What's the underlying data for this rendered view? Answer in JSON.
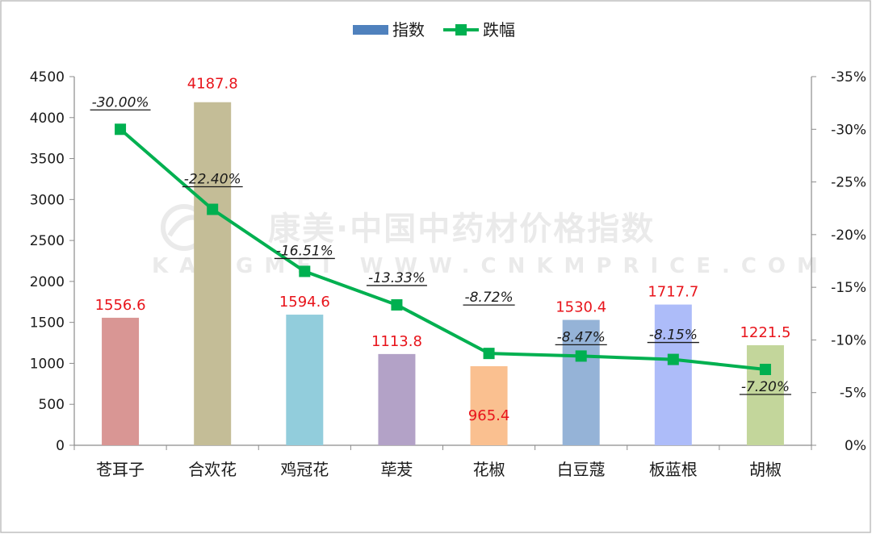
{
  "chart_data": {
    "type": "bar",
    "categories": [
      "苍耳子",
      "合欢花",
      "鸡冠花",
      "荜茇",
      "花椒",
      "白豆蔻",
      "板蓝根",
      "胡椒"
    ],
    "series": [
      {
        "name": "指数",
        "type": "bar",
        "axis": "left",
        "values": [
          1556.6,
          4187.8,
          1594.6,
          1113.8,
          965.4,
          1530.4,
          1717.7,
          1221.5
        ],
        "value_labels": [
          "1556.6",
          "4187.8",
          "1594.6",
          "1113.8",
          "965.4",
          "1530.4",
          "1717.7",
          "1221.5"
        ],
        "colors": [
          "#d99694",
          "#c4bd97",
          "#92cddc",
          "#b3a2c7",
          "#fac090",
          "#95b3d7",
          "#adbcf9",
          "#c3d69b"
        ]
      },
      {
        "name": "跌幅",
        "type": "line",
        "axis": "right",
        "values": [
          -30.0,
          -22.4,
          -16.51,
          -13.33,
          -8.72,
          -8.47,
          -8.15,
          -7.2
        ],
        "value_labels": [
          "-30.00%",
          "-22.40%",
          "-16.51%",
          "-13.33%",
          "-8.72%",
          "-8.47%",
          "-8.15%",
          "-7.20%"
        ],
        "color": "#00b050"
      }
    ],
    "y_left": {
      "range": [
        0,
        4500
      ],
      "ticks": [
        0,
        500,
        1000,
        1500,
        2000,
        2500,
        3000,
        3500,
        4000,
        4500
      ],
      "tick_labels": [
        "0",
        "500",
        "1000",
        "1500",
        "2000",
        "2500",
        "3000",
        "3500",
        "4000",
        "4500"
      ]
    },
    "y_right": {
      "range": [
        0,
        -35
      ],
      "reversed": true,
      "ticks": [
        0,
        -5,
        -10,
        -15,
        -20,
        -25,
        -30,
        -35
      ],
      "tick_labels": [
        "0%",
        "-5%",
        "-10%",
        "-15%",
        "-20%",
        "-25%",
        "-30%",
        "-35%"
      ]
    },
    "legend": {
      "position": "top-center",
      "items": [
        {
          "label": "指数",
          "kind": "bar",
          "color": "#4f81bd"
        },
        {
          "label": "跌幅",
          "kind": "line-marker",
          "color": "#00b050"
        }
      ]
    },
    "grid": false,
    "title": "",
    "xlabel": "",
    "ylabel": ""
  },
  "watermark": {
    "cn": "康美·中国中药材价格指数",
    "en": "KANGMEI WWW.CNKMPRICE.COM"
  }
}
